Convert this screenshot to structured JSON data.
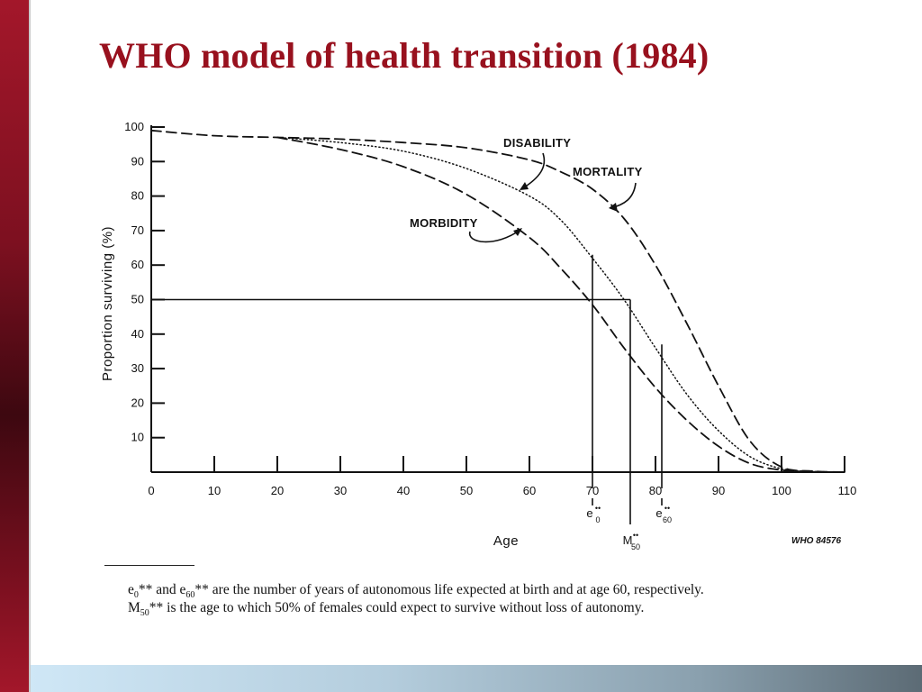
{
  "slide": {
    "title": "WHO model of health transition (1984)"
  },
  "chart_data": {
    "type": "line",
    "ylabel": "Proportion surviving (%)",
    "xlabel": "Age",
    "xlim": [
      0,
      110
    ],
    "ylim": [
      0,
      100
    ],
    "x_ticks": [
      0,
      10,
      20,
      30,
      40,
      50,
      60,
      70,
      80,
      90,
      100,
      110
    ],
    "y_ticks": [
      10,
      20,
      30,
      40,
      50,
      60,
      70,
      80,
      90,
      100
    ],
    "grid": false,
    "series": [
      {
        "name": "MORTALITY",
        "style": "dashed",
        "x": [
          0,
          10,
          20,
          30,
          40,
          50,
          60,
          65,
          70,
          75,
          80,
          85,
          90,
          95,
          100,
          105,
          110
        ],
        "y": [
          99,
          97.5,
          97,
          96.5,
          95.5,
          94,
          90.5,
          87,
          82,
          73.5,
          60,
          43,
          25,
          9,
          1.5,
          0.3,
          0
        ]
      },
      {
        "name": "DISABILITY",
        "style": "dotted",
        "x": [
          20,
          30,
          40,
          50,
          60,
          65,
          70,
          75,
          80,
          85,
          90,
          95,
          100,
          105,
          110
        ],
        "y": [
          97,
          95.5,
          93,
          88,
          80,
          73,
          62,
          50,
          36,
          22.5,
          12,
          4.5,
          1,
          0.2,
          0
        ]
      },
      {
        "name": "MORBIDITY",
        "style": "dashed",
        "x": [
          20,
          30,
          40,
          50,
          60,
          65,
          70,
          75,
          80,
          85,
          90,
          95,
          100,
          105,
          110
        ],
        "y": [
          97,
          93.5,
          88.5,
          80.5,
          68,
          59,
          48.5,
          36,
          24.5,
          15,
          7.5,
          2.5,
          0.6,
          0.1,
          0
        ]
      }
    ],
    "reference_lines": {
      "horizontal_y": 50,
      "verticals": [
        {
          "x": 70,
          "top_y": 63
        },
        {
          "x": 76,
          "top_y": 50
        },
        {
          "x": 81,
          "top_y": 37
        }
      ]
    },
    "markers": [
      {
        "main": "e",
        "sup": "••",
        "sub": "0",
        "x": 70
      },
      {
        "main": "M",
        "sup": "••",
        "sub": "50",
        "x": 76
      },
      {
        "main": "e",
        "sup": "••",
        "sub": "60",
        "x": 81
      }
    ],
    "source_code": "WHO 84576",
    "footnote": {
      "line1": {
        "a": "e",
        "a_sub": "0",
        "b": "** and e",
        "b_sub": "60",
        "c": "** are the number of years of autonomous life expected at birth and at age 60, respectively."
      },
      "line2": {
        "a": "M",
        "a_sub": "50",
        "c": "** is the age to which 50% of females could expect to survive without loss of autonomy."
      }
    }
  }
}
